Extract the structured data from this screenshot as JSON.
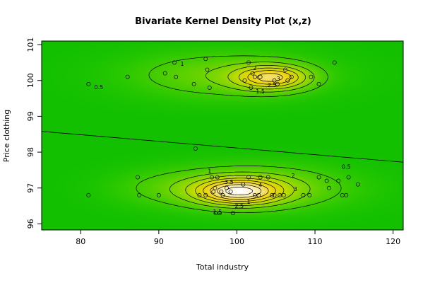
{
  "chart_data": {
    "type": "scatter",
    "title": "Bivariate Kernel Density Plot (x,z)",
    "xlabel": "Total industry",
    "ylabel": "Price clothing",
    "xlim": [
      75,
      121.3
    ],
    "ylim": [
      95.83,
      101.1
    ],
    "x_ticks": [
      80,
      90,
      100,
      110,
      120
    ],
    "y_ticks": [
      96,
      97,
      98,
      99,
      100,
      101
    ],
    "grid": false,
    "colors": {
      "background": "#12c000",
      "low_density": "#49d000",
      "mid_density": "#e6d000",
      "high_density": "#f4e8b0",
      "peak_density": "#ffffff",
      "contour": "#000000",
      "point": "#000000"
    },
    "density_components": [
      {
        "x": 104.5,
        "y": 100.08,
        "sx": 3.2,
        "sy": 0.23,
        "w": 0.85
      },
      {
        "x": 98.5,
        "y": 100.15,
        "sx": 8.5,
        "sy": 0.45,
        "w": 0.32
      },
      {
        "x": 100.2,
        "y": 96.9,
        "sx": 3.6,
        "sy": 0.24,
        "w": 1.0
      },
      {
        "x": 102,
        "y": 97.0,
        "sx": 8.0,
        "sy": 0.42,
        "w": 0.45
      },
      {
        "x": 90,
        "y": 97.0,
        "sx": 5.0,
        "sy": 0.35,
        "w": 0.1
      }
    ],
    "contour_levels": [
      0.5,
      1,
      1.5,
      2,
      2.5,
      3,
      3.5,
      4
    ],
    "regression_line": {
      "x": [
        75,
        121.3
      ],
      "y": [
        98.58,
        97.72
      ]
    },
    "contour_labels": [
      {
        "text": "0.5",
        "x": 82.3,
        "y": 99.82
      },
      {
        "text": "1",
        "x": 93,
        "y": 100.47
      },
      {
        "text": "2",
        "x": 102.3,
        "y": 100.35
      },
      {
        "text": "1.5",
        "x": 103,
        "y": 99.7
      },
      {
        "text": "2.5",
        "x": 104.5,
        "y": 99.88
      },
      {
        "text": "3",
        "x": 105.3,
        "y": 100.05
      },
      {
        "text": "0.5",
        "x": 114,
        "y": 97.6
      },
      {
        "text": "1",
        "x": 96.5,
        "y": 97.48
      },
      {
        "text": "2",
        "x": 107.2,
        "y": 97.35
      },
      {
        "text": "3.5",
        "x": 99,
        "y": 97.17
      },
      {
        "text": "4",
        "x": 103,
        "y": 97.08
      },
      {
        "text": "3",
        "x": 107.5,
        "y": 96.97
      },
      {
        "text": "2.5",
        "x": 100.3,
        "y": 96.5
      },
      {
        "text": "1",
        "x": 101.5,
        "y": 96.62
      },
      {
        "text": "1.5",
        "x": 97.5,
        "y": 96.34
      }
    ],
    "points": [
      {
        "x": 81,
        "y": 99.9
      },
      {
        "x": 86,
        "y": 100.1
      },
      {
        "x": 90.8,
        "y": 100.2
      },
      {
        "x": 92,
        "y": 100.5
      },
      {
        "x": 92.2,
        "y": 100.1
      },
      {
        "x": 94.5,
        "y": 99.9
      },
      {
        "x": 96,
        "y": 100.6
      },
      {
        "x": 96.2,
        "y": 100.3
      },
      {
        "x": 96.5,
        "y": 99.8
      },
      {
        "x": 101,
        "y": 100
      },
      {
        "x": 101.5,
        "y": 100.5
      },
      {
        "x": 101.8,
        "y": 99.8
      },
      {
        "x": 102,
        "y": 100.2
      },
      {
        "x": 102.3,
        "y": 100.1
      },
      {
        "x": 103,
        "y": 100.1
      },
      {
        "x": 104.8,
        "y": 100
      },
      {
        "x": 105.2,
        "y": 99.9
      },
      {
        "x": 106.2,
        "y": 100.3
      },
      {
        "x": 106.5,
        "y": 100
      },
      {
        "x": 107,
        "y": 100.1
      },
      {
        "x": 109.5,
        "y": 100.1
      },
      {
        "x": 110.5,
        "y": 99.9
      },
      {
        "x": 112.5,
        "y": 100.5
      },
      {
        "x": 94.7,
        "y": 98.1
      },
      {
        "x": 81,
        "y": 96.8
      },
      {
        "x": 87.3,
        "y": 97.3
      },
      {
        "x": 87.5,
        "y": 96.8
      },
      {
        "x": 90,
        "y": 96.8
      },
      {
        "x": 95.2,
        "y": 96.8
      },
      {
        "x": 96,
        "y": 96.8
      },
      {
        "x": 96.8,
        "y": 97.3
      },
      {
        "x": 97,
        "y": 96.9
      },
      {
        "x": 97.2,
        "y": 97
      },
      {
        "x": 97.5,
        "y": 97.3
      },
      {
        "x": 97.8,
        "y": 96.3
      },
      {
        "x": 97.3,
        "y": 96.3
      },
      {
        "x": 98,
        "y": 96.9
      },
      {
        "x": 98.2,
        "y": 96.8
      },
      {
        "x": 98.7,
        "y": 97
      },
      {
        "x": 99.2,
        "y": 96.9
      },
      {
        "x": 99.5,
        "y": 96.3
      },
      {
        "x": 100.8,
        "y": 97.1
      },
      {
        "x": 101.5,
        "y": 97.3
      },
      {
        "x": 102.3,
        "y": 96.8
      },
      {
        "x": 102.8,
        "y": 96.8
      },
      {
        "x": 103,
        "y": 97.3
      },
      {
        "x": 104,
        "y": 97.3
      },
      {
        "x": 104.5,
        "y": 96.8
      },
      {
        "x": 104.8,
        "y": 96.8
      },
      {
        "x": 105.5,
        "y": 96.8
      },
      {
        "x": 106,
        "y": 96.8
      },
      {
        "x": 108.5,
        "y": 96.8
      },
      {
        "x": 109.3,
        "y": 96.8
      },
      {
        "x": 110.5,
        "y": 97.3
      },
      {
        "x": 111.5,
        "y": 97.2
      },
      {
        "x": 111.8,
        "y": 97
      },
      {
        "x": 113,
        "y": 97.2
      },
      {
        "x": 113.5,
        "y": 96.8
      },
      {
        "x": 114,
        "y": 96.8
      },
      {
        "x": 114.3,
        "y": 97.3
      },
      {
        "x": 115.5,
        "y": 97.1
      }
    ]
  }
}
